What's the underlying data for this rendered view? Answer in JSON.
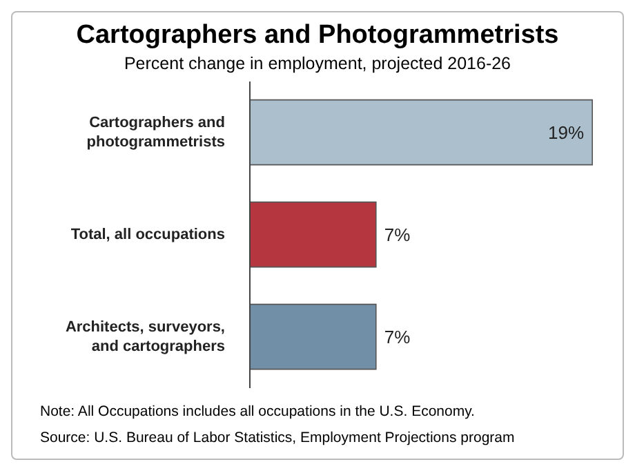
{
  "chart_data": {
    "type": "bar",
    "orientation": "horizontal",
    "title": "Cartographers and Photogrammetrists",
    "subtitle": "Percent change in employment, projected 2016-26",
    "categories": [
      "Cartographers and photogrammetrists",
      "Total, all occupations",
      "Architects, surveyors, and cartographers"
    ],
    "values": [
      19,
      7,
      7
    ],
    "colors": [
      "#abbfcc",
      "#b5363f",
      "#7190a8"
    ],
    "value_labels": [
      "19%",
      "7%",
      "7%"
    ],
    "legend": false,
    "grid": false,
    "annotations": [
      "Note: All Occupations includes all occupations in the U.S. Economy.",
      "Source: U.S. Bureau of Labor Statistics, Employment Projections program"
    ]
  }
}
